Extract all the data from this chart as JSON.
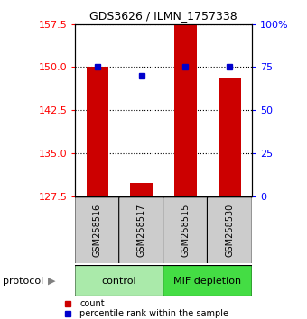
{
  "title": "GDS3626 / ILMN_1757338",
  "samples": [
    "GSM258516",
    "GSM258517",
    "GSM258515",
    "GSM258530"
  ],
  "counts": [
    150.0,
    129.8,
    157.2,
    148.0
  ],
  "percentiles": [
    75.0,
    70.0,
    75.0,
    75.0
  ],
  "y_min": 127.5,
  "y_max": 157.5,
  "y_ticks_left": [
    127.5,
    135,
    142.5,
    150,
    157.5
  ],
  "y2_ticks": [
    0,
    25,
    50,
    75,
    100
  ],
  "bar_color": "#cc0000",
  "dot_color": "#0000cc",
  "bar_width": 0.5,
  "groups": [
    {
      "label": "control",
      "samples": [
        0,
        1
      ],
      "color": "#aaeaaa"
    },
    {
      "label": "MIF depletion",
      "samples": [
        2,
        3
      ],
      "color": "#44dd44"
    }
  ],
  "group_box_color": "#cccccc",
  "legend_count_color": "#cc0000",
  "legend_pct_color": "#0000cc",
  "title_fontsize": 9,
  "tick_fontsize": 8,
  "sample_fontsize": 7,
  "group_fontsize": 8,
  "legend_fontsize": 7
}
